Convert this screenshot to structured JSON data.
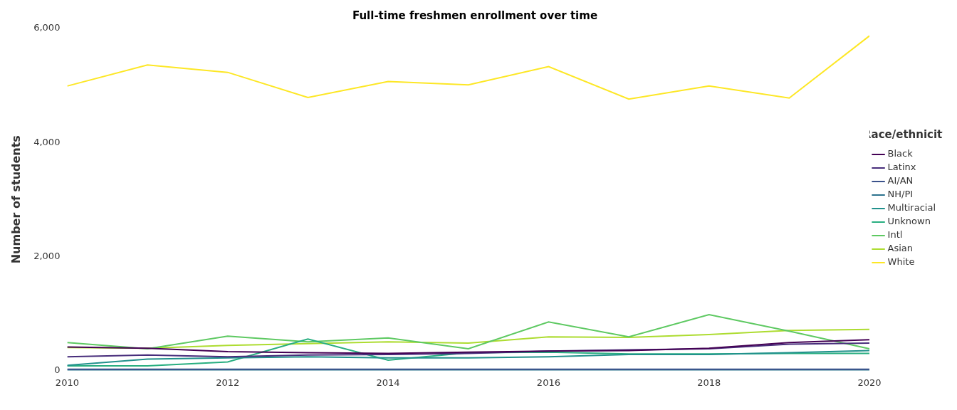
{
  "chart_data": {
    "type": "line",
    "title": "Full-time freshmen enrollment over time",
    "y_label": "Number of students",
    "legend_title": "Race/ethnicity",
    "legend": "right",
    "grid": false,
    "x": [
      2010,
      2011,
      2012,
      2013,
      2014,
      2015,
      2016,
      2017,
      2018,
      2019,
      2020
    ],
    "xlim": [
      2010,
      2020
    ],
    "xticks": [
      2010,
      2012,
      2014,
      2016,
      2018,
      2020
    ],
    "ylim": [
      0,
      6000
    ],
    "yticks": [
      0,
      {
        "value": 2000,
        "label": "2,000"
      },
      {
        "value": 4000,
        "label": "4,000"
      },
      {
        "value": 6000,
        "label": "6,000"
      }
    ],
    "series": [
      {
        "name": "Black",
        "color": "#440154",
        "values": [
          410,
          390,
          330,
          310,
          300,
          320,
          340,
          350,
          390,
          490,
          540
        ]
      },
      {
        "name": "Latinx",
        "color": "#472d7b",
        "values": [
          240,
          270,
          240,
          270,
          280,
          300,
          340,
          360,
          380,
          460,
          480
        ]
      },
      {
        "name": "AI/AN",
        "color": "#3b528b",
        "values": [
          20,
          20,
          20,
          20,
          20,
          20,
          20,
          20,
          20,
          20,
          20
        ]
      },
      {
        "name": "NH/PI",
        "color": "#2c728e",
        "values": [
          5,
          5,
          5,
          5,
          5,
          5,
          5,
          5,
          5,
          5,
          5
        ]
      },
      {
        "name": "Multiracial",
        "color": "#21918c",
        "values": [
          90,
          200,
          220,
          240,
          220,
          220,
          240,
          280,
          280,
          310,
          350
        ]
      },
      {
        "name": "Unknown",
        "color": "#28ae80",
        "values": [
          80,
          80,
          150,
          550,
          180,
          310,
          320,
          290,
          290,
          300,
          300
        ]
      },
      {
        "name": "Intl",
        "color": "#5ec962",
        "values": [
          490,
          380,
          600,
          500,
          570,
          380,
          850,
          590,
          980,
          690,
          380
        ]
      },
      {
        "name": "Asian",
        "color": "#addc30",
        "values": [
          400,
          390,
          440,
          470,
          500,
          480,
          590,
          580,
          630,
          700,
          720
        ]
      },
      {
        "name": "White",
        "color": "#fde725",
        "values": [
          4990,
          5360,
          5230,
          4790,
          5070,
          5010,
          5330,
          4760,
          4990,
          4780,
          5870
        ]
      }
    ]
  }
}
